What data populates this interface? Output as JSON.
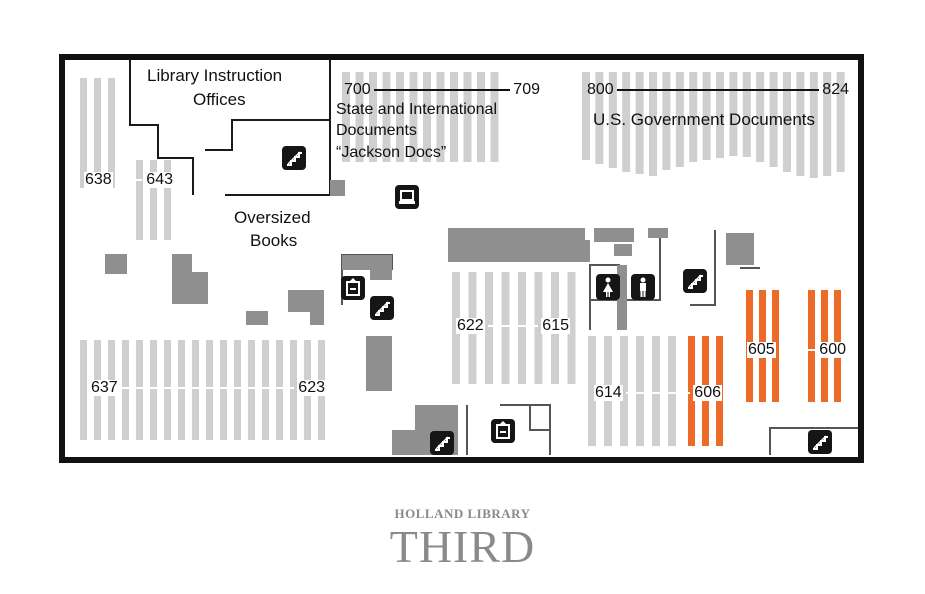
{
  "areas": {
    "library_instruction": "Library Instruction",
    "offices": "Offices",
    "state_intl": "State and International",
    "documents": "Documents",
    "jackson_docs": "“Jackson Docs”",
    "us_gov": "U.S. Government Documents",
    "oversized": "Oversized",
    "books": "Books"
  },
  "ranges": [
    {
      "id": "700-709",
      "from": "700",
      "to": "709"
    },
    {
      "id": "800-824",
      "from": "800",
      "to": "824"
    },
    {
      "id": "638-643",
      "from": "638",
      "to": "643"
    },
    {
      "id": "622-615",
      "from": "622",
      "to": "615"
    },
    {
      "id": "605-600",
      "from": "605",
      "to": "600"
    },
    {
      "id": "614-606",
      "from": "614",
      "to": "606"
    },
    {
      "id": "637-623",
      "from": "637",
      "to": "623"
    }
  ],
  "highlight_color": "#ee6a28",
  "shelf_color": "#cfcfcf",
  "block_color": "#8f8f8f",
  "icons": [
    "stairs-icon",
    "computer-icon",
    "elevator-icon",
    "womens-restroom-icon",
    "mens-restroom-icon"
  ],
  "footer": {
    "subtitle": "HOLLAND LIBRARY",
    "title": "THIRD"
  }
}
